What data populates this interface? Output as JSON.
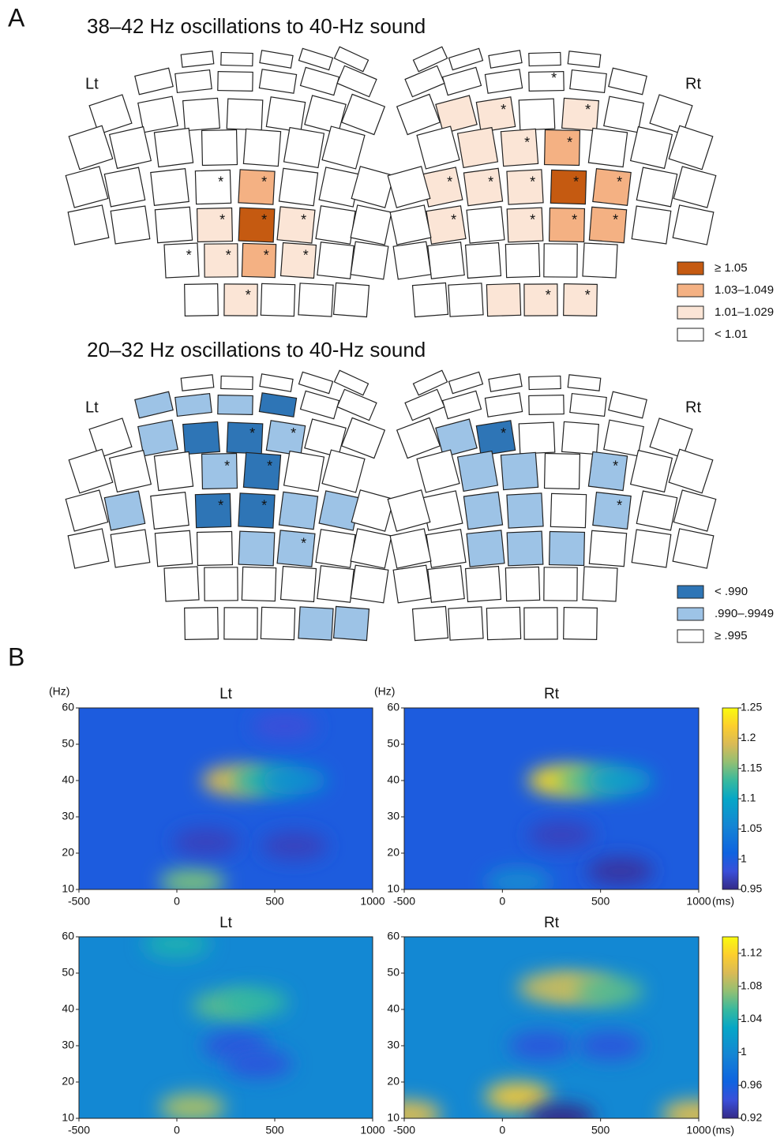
{
  "panel_a": {
    "label": "A",
    "maps": [
      {
        "title": "38–42 Hz oscillations to 40-Hz sound",
        "left_label": "Lt",
        "right_label": "Rt",
        "star_symbol": "*",
        "legend": [
          {
            "label": "≥ 1.05",
            "color": "#c55a11"
          },
          {
            "label": "1.03–1.049",
            "color": "#f4b183"
          },
          {
            "label": "1.01–1.029",
            "color": "#fbe5d6"
          },
          {
            "label": "< 1.01",
            "color": "#ffffff"
          }
        ],
        "left": {
          "levels": [
            [
              3,
              3,
              3,
              3,
              3
            ],
            [
              3,
              3,
              3,
              3,
              3,
              3
            ],
            [
              3,
              3,
              3,
              3,
              3,
              3,
              3
            ],
            [
              3,
              3,
              3,
              3,
              3,
              3,
              3
            ],
            [
              3,
              3,
              3,
              3,
              1,
              3,
              3,
              3
            ],
            [
              3,
              3,
              3,
              2,
              0,
              2,
              3,
              3
            ],
            [
              3,
              2,
              1,
              2,
              3,
              3
            ],
            [
              3,
              2,
              3,
              3,
              3
            ]
          ],
          "stars": [
            [
              0,
              0,
              0,
              0,
              0
            ],
            [
              0,
              0,
              0,
              0,
              0,
              0
            ],
            [
              0,
              0,
              0,
              0,
              0,
              0,
              0
            ],
            [
              0,
              0,
              0,
              0,
              0,
              0,
              0
            ],
            [
              0,
              0,
              0,
              1,
              1,
              0,
              0,
              0
            ],
            [
              0,
              0,
              0,
              1,
              1,
              1,
              0,
              0
            ],
            [
              1,
              1,
              1,
              1,
              0,
              0
            ],
            [
              0,
              1,
              0,
              0,
              0
            ]
          ]
        },
        "right": {
          "levels": [
            [
              3,
              3,
              3,
              3,
              3
            ],
            [
              3,
              3,
              3,
              3,
              3,
              3
            ],
            [
              3,
              3,
              2,
              3,
              2,
              2,
              3
            ],
            [
              3,
              3,
              3,
              1,
              2,
              2,
              3
            ],
            [
              3,
              3,
              1,
              0,
              2,
              2,
              2,
              3
            ],
            [
              3,
              3,
              1,
              1,
              2,
              3,
              2,
              3
            ],
            [
              3,
              3,
              3,
              3,
              3,
              3
            ],
            [
              2,
              2,
              2,
              3,
              3
            ]
          ],
          "stars": [
            [
              0,
              0,
              0,
              0,
              0
            ],
            [
              0,
              0,
              1,
              0,
              0,
              0
            ],
            [
              0,
              0,
              1,
              0,
              1,
              0,
              0
            ],
            [
              0,
              0,
              0,
              1,
              1,
              0,
              0
            ],
            [
              0,
              0,
              1,
              1,
              1,
              1,
              1,
              0
            ],
            [
              0,
              0,
              1,
              1,
              1,
              0,
              1,
              0
            ],
            [
              0,
              0,
              0,
              0,
              0,
              0
            ],
            [
              1,
              1,
              0,
              0,
              0
            ]
          ]
        }
      },
      {
        "title": "20–32 Hz oscillations to 40-Hz sound",
        "left_label": "Lt",
        "right_label": "Rt",
        "star_symbol": "*",
        "legend": [
          {
            "label": "< .990",
            "color": "#2e75b6"
          },
          {
            "label": ".990–.9949",
            "color": "#9dc3e6"
          },
          {
            "label": "≥ .995",
            "color": "#ffffff"
          }
        ],
        "left": {
          "levels": [
            [
              2,
              2,
              2,
              2,
              2
            ],
            [
              1,
              1,
              1,
              0,
              2,
              2
            ],
            [
              2,
              1,
              0,
              0,
              1,
              2,
              2
            ],
            [
              2,
              2,
              2,
              1,
              0,
              2,
              2
            ],
            [
              2,
              1,
              2,
              0,
              0,
              1,
              1,
              2
            ],
            [
              2,
              2,
              2,
              2,
              1,
              1,
              2,
              2
            ],
            [
              2,
              2,
              2,
              2,
              2,
              2
            ],
            [
              2,
              2,
              2,
              1,
              1
            ]
          ],
          "stars": [
            [
              0,
              0,
              0,
              0,
              0
            ],
            [
              0,
              0,
              0,
              0,
              0,
              0
            ],
            [
              0,
              0,
              0,
              1,
              1,
              0,
              0
            ],
            [
              0,
              0,
              0,
              1,
              1,
              0,
              0
            ],
            [
              0,
              0,
              0,
              1,
              1,
              0,
              0,
              0
            ],
            [
              0,
              0,
              0,
              0,
              0,
              1,
              0,
              0
            ],
            [
              0,
              0,
              0,
              0,
              0,
              0
            ],
            [
              0,
              0,
              0,
              0,
              0
            ]
          ]
        },
        "right": {
          "levels": [
            [
              2,
              2,
              2,
              2,
              2
            ],
            [
              2,
              2,
              2,
              2,
              2,
              2
            ],
            [
              2,
              2,
              2,
              2,
              0,
              1,
              2
            ],
            [
              2,
              2,
              1,
              2,
              1,
              1,
              2
            ],
            [
              2,
              2,
              1,
              2,
              1,
              1,
              2,
              2
            ],
            [
              2,
              2,
              2,
              1,
              1,
              1,
              2,
              2
            ],
            [
              2,
              2,
              2,
              2,
              2,
              2
            ],
            [
              2,
              2,
              2,
              2,
              2
            ]
          ],
          "stars": [
            [
              0,
              0,
              0,
              0,
              0
            ],
            [
              0,
              0,
              0,
              0,
              0,
              0
            ],
            [
              0,
              0,
              0,
              0,
              1,
              0,
              0
            ],
            [
              0,
              0,
              1,
              0,
              0,
              0,
              0
            ],
            [
              0,
              0,
              1,
              0,
              0,
              0,
              0,
              0
            ],
            [
              0,
              0,
              0,
              0,
              0,
              0,
              0,
              0
            ],
            [
              0,
              0,
              0,
              0,
              0,
              0
            ],
            [
              0,
              0,
              0,
              0,
              0
            ]
          ]
        }
      }
    ]
  },
  "panel_b_label": "B",
  "chart_data": [
    {
      "type": "heatmap",
      "xlim": [
        -500,
        1000
      ],
      "xticks": [
        -500,
        0,
        500,
        1000
      ],
      "ylim": [
        10,
        60
      ],
      "yticks": [
        10,
        20,
        30,
        40,
        50,
        60
      ],
      "y_unit": "(Hz)",
      "x_unit": "(ms)",
      "clim": [
        0.95,
        1.25
      ],
      "cticks": [
        0.95,
        1,
        1.05,
        1.1,
        1.15,
        1.2,
        1.25
      ],
      "panels": [
        {
          "title": "Lt",
          "background": 1.0,
          "peaks": [
            {
              "x": 300,
              "y": 40,
              "value": 1.2
            },
            {
              "x": 450,
              "y": 40,
              "value": 1.12
            },
            {
              "x": 600,
              "y": 40,
              "value": 1.07
            },
            {
              "x": 80,
              "y": 12,
              "value": 1.15
            },
            {
              "x": 150,
              "y": 23,
              "value": 0.97
            },
            {
              "x": 600,
              "y": 22,
              "value": 0.97
            },
            {
              "x": 550,
              "y": 55,
              "value": 0.98
            }
          ]
        },
        {
          "title": "Rt",
          "background": 1.0,
          "peaks": [
            {
              "x": 300,
              "y": 40,
              "value": 1.23
            },
            {
              "x": 450,
              "y": 40,
              "value": 1.14
            },
            {
              "x": 600,
              "y": 40,
              "value": 1.09
            },
            {
              "x": 80,
              "y": 12,
              "value": 1.06
            },
            {
              "x": 600,
              "y": 15,
              "value": 0.96
            },
            {
              "x": 300,
              "y": 25,
              "value": 0.97
            }
          ]
        }
      ]
    },
    {
      "type": "heatmap",
      "xlim": [
        -500,
        1000
      ],
      "xticks": [
        -500,
        0,
        500,
        1000
      ],
      "ylim": [
        10,
        60
      ],
      "yticks": [
        10,
        20,
        30,
        40,
        50,
        60
      ],
      "x_unit": "(ms)",
      "clim": [
        0.92,
        1.14
      ],
      "cticks": [
        0.92,
        0.96,
        1,
        1.04,
        1.08,
        1.12
      ],
      "panels": [
        {
          "title": "Lt",
          "background": 1.0,
          "peaks": [
            {
              "x": 250,
              "y": 41,
              "value": 1.06
            },
            {
              "x": 400,
              "y": 42,
              "value": 1.05
            },
            {
              "x": 80,
              "y": 13,
              "value": 1.08
            },
            {
              "x": 300,
              "y": 30,
              "value": 0.95
            },
            {
              "x": 420,
              "y": 25,
              "value": 0.95
            },
            {
              "x": 0,
              "y": 58,
              "value": 1.04
            }
          ]
        },
        {
          "title": "Rt",
          "background": 1.0,
          "peaks": [
            {
              "x": 250,
              "y": 46,
              "value": 1.09
            },
            {
              "x": 400,
              "y": 46,
              "value": 1.09
            },
            {
              "x": 550,
              "y": 45,
              "value": 1.06
            },
            {
              "x": 80,
              "y": 16,
              "value": 1.11
            },
            {
              "x": 200,
              "y": 30,
              "value": 0.95
            },
            {
              "x": 550,
              "y": 30,
              "value": 0.95
            },
            {
              "x": 300,
              "y": 10,
              "value": 0.92
            },
            {
              "x": -480,
              "y": 11,
              "value": 1.1
            },
            {
              "x": 980,
              "y": 11,
              "value": 1.1
            }
          ]
        }
      ]
    }
  ]
}
